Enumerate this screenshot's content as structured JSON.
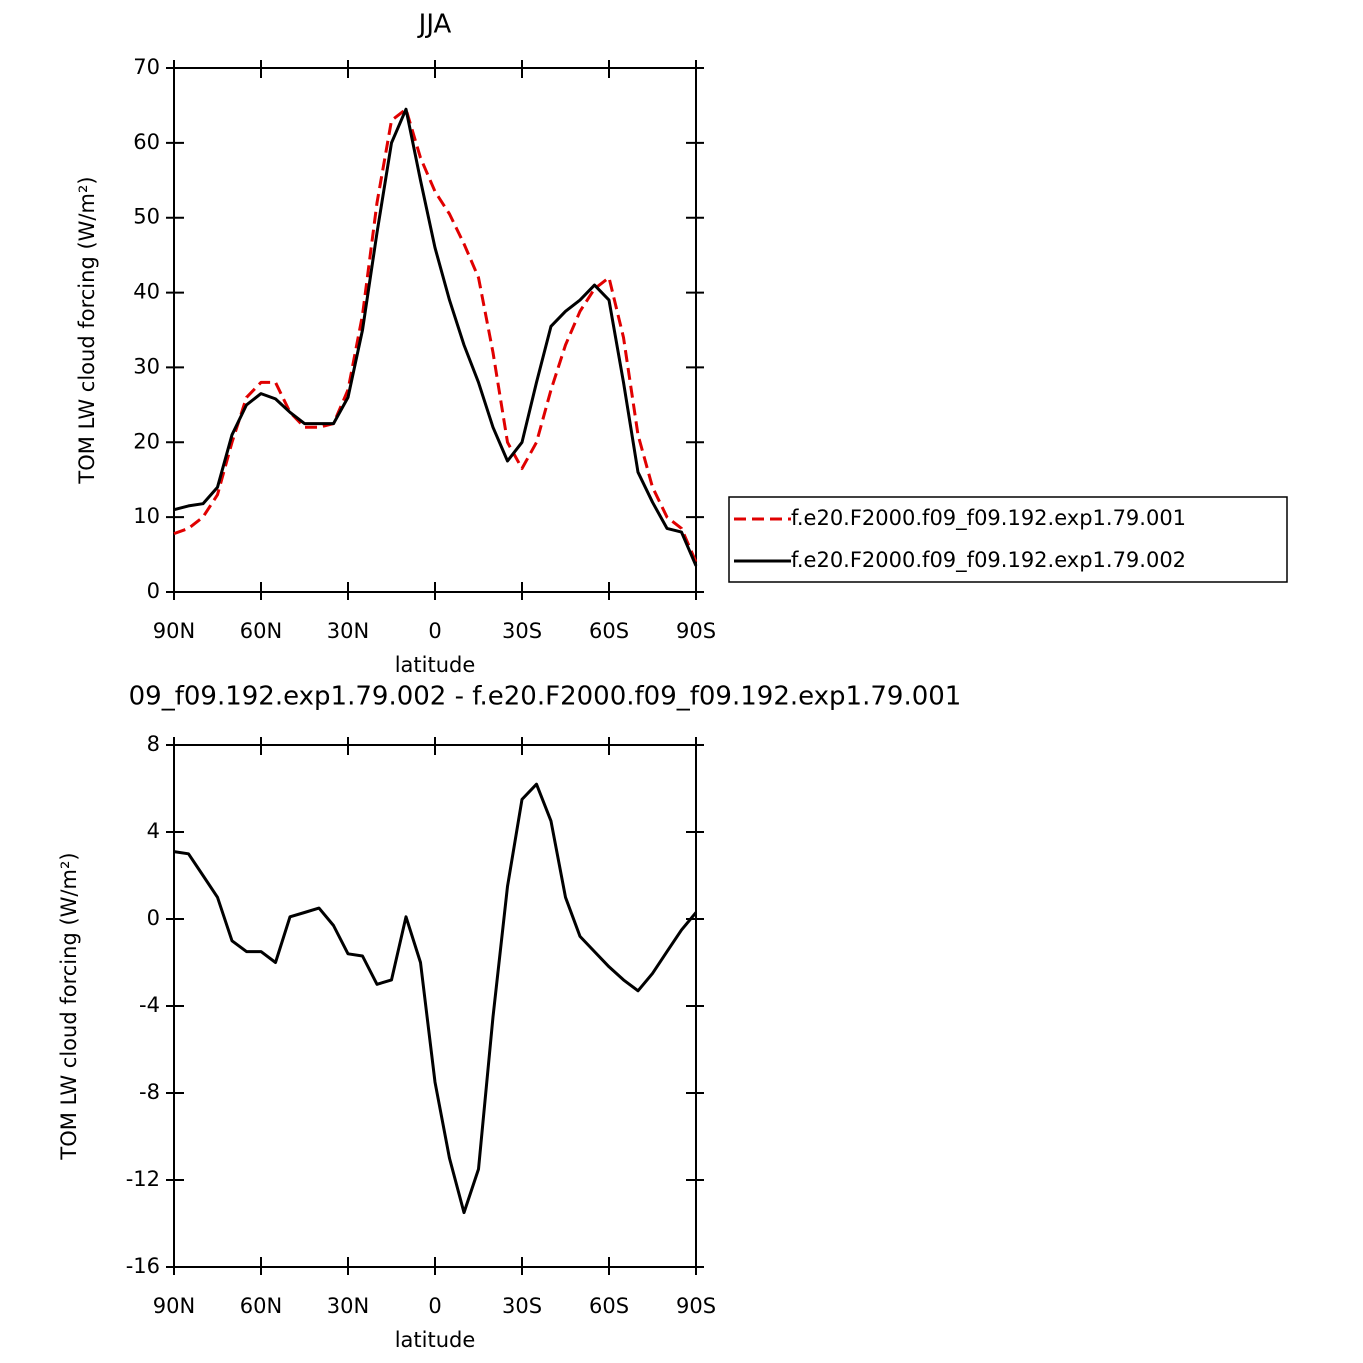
{
  "chart_data": [
    {
      "type": "line",
      "title": "JJA",
      "xlabel": "latitude",
      "ylabel": "TOM LW cloud forcing (W/m²)",
      "x": [
        90,
        85,
        80,
        75,
        70,
        65,
        60,
        55,
        50,
        45,
        40,
        35,
        30,
        25,
        20,
        15,
        10,
        5,
        0,
        -5,
        -10,
        -15,
        -20,
        -25,
        -30,
        -35,
        -40,
        -45,
        -50,
        -55,
        -60,
        -65,
        -70,
        -75,
        -80,
        -85,
        -90
      ],
      "xlim": [
        90,
        -90
      ],
      "xticks": [
        {
          "value": 90,
          "label": "90N"
        },
        {
          "value": 60,
          "label": "60N"
        },
        {
          "value": 30,
          "label": "30N"
        },
        0,
        {
          "value": -30,
          "label": "30S"
        },
        {
          "value": -60,
          "label": "60S"
        },
        {
          "value": -90,
          "label": "90S"
        }
      ],
      "ylim": [
        0,
        70
      ],
      "yticks": [
        0,
        10,
        20,
        30,
        40,
        50,
        60,
        70
      ],
      "legend": "right",
      "series": [
        {
          "name": "f.e20.F2000.f09_f09.192.exp1.79.001",
          "color": "#e00000",
          "dash": true,
          "values": [
            7.8,
            8.5,
            10,
            13,
            20,
            26,
            28,
            28,
            24,
            22,
            22,
            22.5,
            27,
            37,
            52,
            63,
            64.5,
            58,
            53.5,
            50.5,
            46.5,
            42,
            32,
            20,
            16.5,
            20,
            27,
            33,
            37.5,
            40.5,
            42,
            34,
            21,
            14,
            10,
            8.5,
            4
          ]
        },
        {
          "name": "f.e20.F2000.f09_f09.192.exp1.79.002",
          "color": "#000000",
          "dash": false,
          "values": [
            11,
            11.5,
            11.8,
            14,
            21,
            25,
            26.5,
            25.8,
            24,
            22.5,
            22.5,
            22.5,
            26,
            35,
            48,
            60,
            64.5,
            55,
            46,
            39,
            33,
            28,
            22,
            17.5,
            20,
            28,
            35.5,
            37.5,
            39,
            41,
            39,
            28,
            16,
            12,
            8.5,
            8,
            3.5
          ]
        }
      ]
    },
    {
      "type": "line",
      "title": "09_f09.192.exp1.79.002 - f.e20.F2000.f09_f09.192.exp1.79.001",
      "xlabel": "latitude",
      "ylabel": "TOM LW cloud forcing (W/m²)",
      "x": [
        90,
        85,
        80,
        75,
        70,
        65,
        60,
        55,
        50,
        45,
        40,
        35,
        30,
        25,
        20,
        15,
        10,
        5,
        0,
        -5,
        -10,
        -15,
        -20,
        -25,
        -30,
        -35,
        -40,
        -45,
        -50,
        -55,
        -60,
        -65,
        -70,
        -75,
        -80,
        -85,
        -90
      ],
      "xlim": [
        90,
        -90
      ],
      "xticks": [
        {
          "value": 90,
          "label": "90N"
        },
        {
          "value": 60,
          "label": "60N"
        },
        {
          "value": 30,
          "label": "30N"
        },
        0,
        {
          "value": -30,
          "label": "30S"
        },
        {
          "value": -60,
          "label": "60S"
        },
        {
          "value": -90,
          "label": "90S"
        }
      ],
      "ylim": [
        -16,
        8
      ],
      "yticks": [
        -16,
        -12,
        -8,
        -4,
        0,
        4,
        8
      ],
      "series": [
        {
          "color": "#000000",
          "dash": false,
          "values": [
            3.1,
            3.0,
            2.0,
            1.0,
            -1.0,
            -1.5,
            -1.5,
            -2.0,
            0.1,
            0.3,
            0.5,
            -0.3,
            -1.6,
            -1.7,
            -3.0,
            -2.8,
            0.1,
            -2.0,
            -7.5,
            -11,
            -13.5,
            -11.5,
            -4.5,
            1.5,
            5.5,
            6.2,
            4.5,
            1.0,
            -0.8,
            -1.5,
            -2.2,
            -2.8,
            -3.3,
            -2.5,
            -1.5,
            -0.5,
            0.3
          ]
        }
      ]
    }
  ]
}
